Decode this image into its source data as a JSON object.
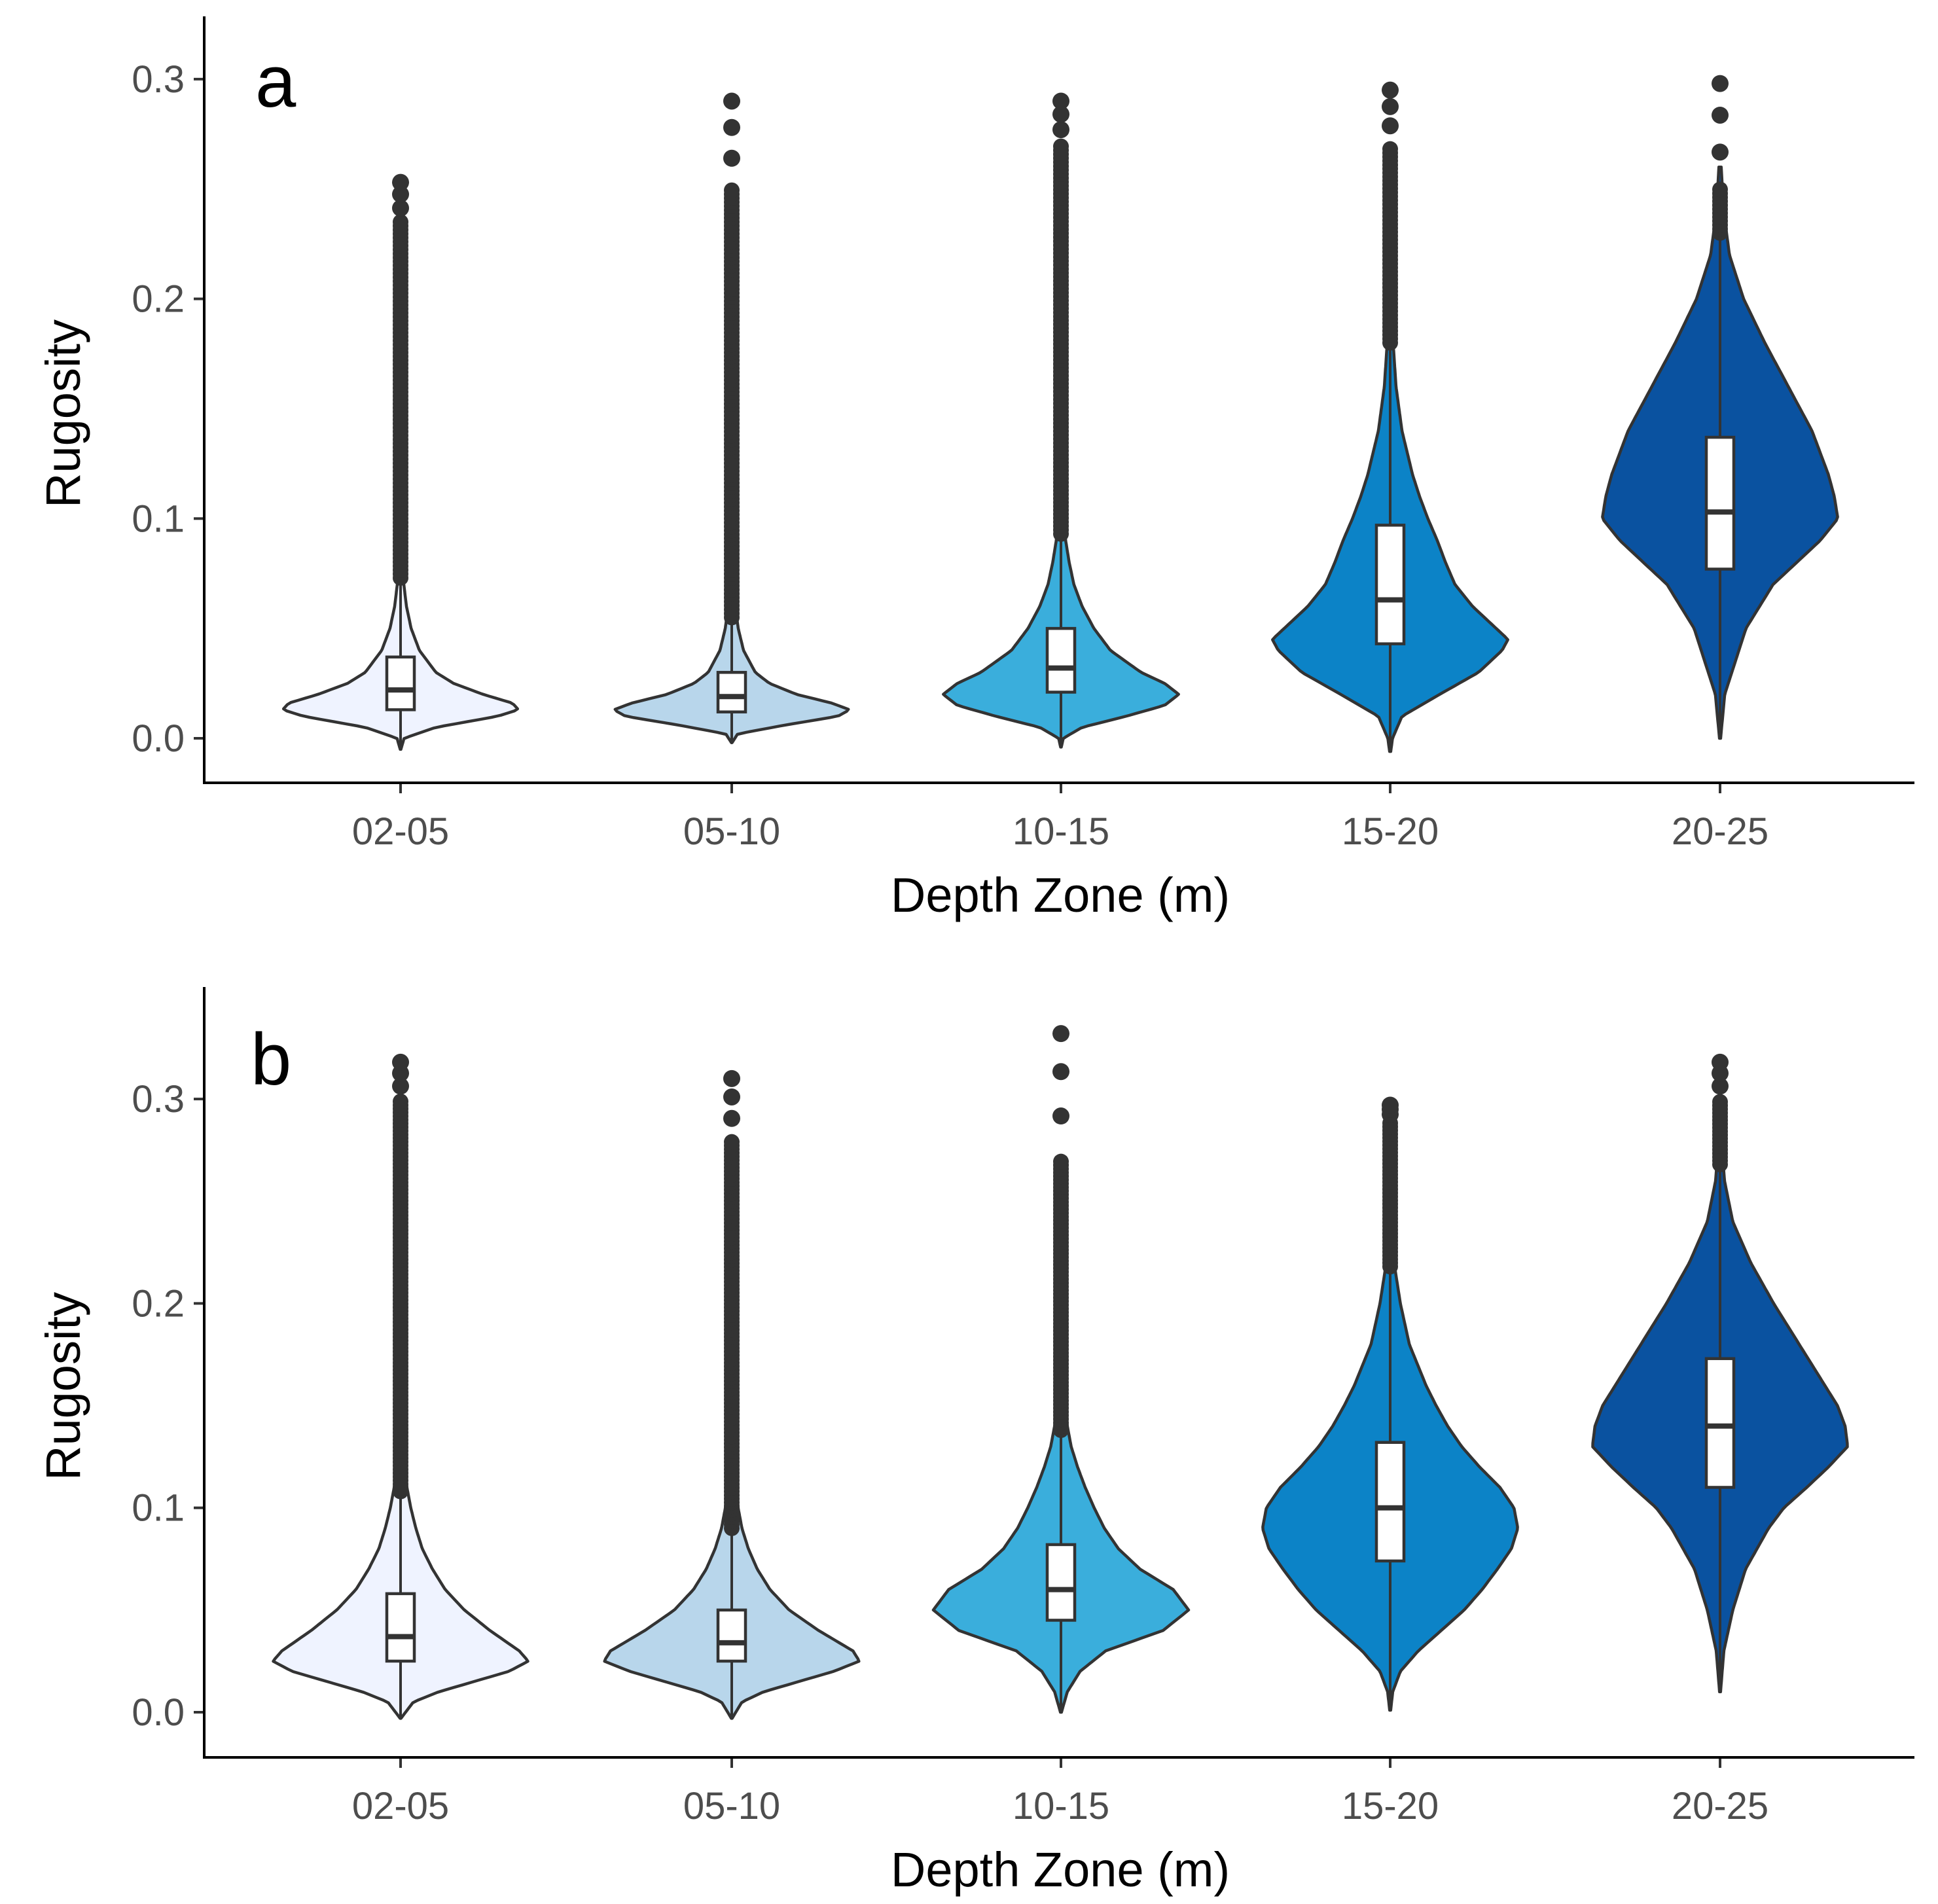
{
  "chart_data": [
    {
      "type": "violin",
      "panel_label": "a",
      "xlabel": "Depth Zone (m)",
      "ylabel": "Rugosity",
      "ylim": [
        -0.02,
        0.325
      ],
      "yticks": [
        0.0,
        0.1,
        0.2,
        0.3
      ],
      "ytick_labels": [
        "0.0",
        "0.1",
        "0.2",
        "0.3"
      ],
      "grid": false,
      "categories": [
        "02-05",
        "05-10",
        "10-15",
        "15-20",
        "20-25"
      ],
      "series": [
        {
          "category": "02-05",
          "color": "#eff3ff",
          "q1": 0.013,
          "median": 0.022,
          "q3": 0.037,
          "whisker_low": -0.005,
          "whisker_high": 0.073,
          "max": 0.253,
          "outlier_dense_to": 0.235,
          "profile": [
            [
              -0.005,
              0.003
            ],
            [
              0.0,
              0.03
            ],
            [
              0.005,
              0.3
            ],
            [
              0.01,
              0.82
            ],
            [
              0.013,
              1.0
            ],
            [
              0.016,
              0.95
            ],
            [
              0.02,
              0.7
            ],
            [
              0.025,
              0.45
            ],
            [
              0.03,
              0.3
            ],
            [
              0.04,
              0.16
            ],
            [
              0.05,
              0.09
            ],
            [
              0.06,
              0.05
            ],
            [
              0.07,
              0.028
            ],
            [
              0.08,
              0.016
            ],
            [
              0.1,
              0.008
            ],
            [
              0.12,
              0.004
            ],
            [
              0.15,
              0.002
            ]
          ]
        },
        {
          "category": "05-10",
          "color": "#b8d6eb",
          "q1": 0.012,
          "median": 0.019,
          "q3": 0.03,
          "whisker_low": -0.002,
          "whisker_high": 0.055,
          "max": 0.29,
          "outlier_dense_to": 0.25,
          "profile": [
            [
              -0.002,
              0.003
            ],
            [
              0.002,
              0.05
            ],
            [
              0.006,
              0.45
            ],
            [
              0.01,
              0.9
            ],
            [
              0.013,
              1.0
            ],
            [
              0.016,
              0.85
            ],
            [
              0.02,
              0.55
            ],
            [
              0.025,
              0.32
            ],
            [
              0.03,
              0.2
            ],
            [
              0.04,
              0.1
            ],
            [
              0.05,
              0.055
            ],
            [
              0.06,
              0.03
            ],
            [
              0.08,
              0.012
            ],
            [
              0.1,
              0.006
            ],
            [
              0.15,
              0.003
            ]
          ]
        },
        {
          "category": "10-15",
          "color": "#3aaedc",
          "q1": 0.021,
          "median": 0.032,
          "q3": 0.05,
          "whisker_low": -0.004,
          "whisker_high": 0.093,
          "max": 0.29,
          "outlier_dense_to": 0.27,
          "profile": [
            [
              -0.004,
              0.003
            ],
            [
              0.0,
              0.02
            ],
            [
              0.005,
              0.18
            ],
            [
              0.01,
              0.55
            ],
            [
              0.015,
              0.88
            ],
            [
              0.02,
              1.0
            ],
            [
              0.025,
              0.88
            ],
            [
              0.03,
              0.68
            ],
            [
              0.04,
              0.42
            ],
            [
              0.05,
              0.28
            ],
            [
              0.06,
              0.18
            ],
            [
              0.07,
              0.11
            ],
            [
              0.08,
              0.07
            ],
            [
              0.09,
              0.04
            ],
            [
              0.1,
              0.022
            ],
            [
              0.12,
              0.01
            ],
            [
              0.15,
              0.005
            ]
          ]
        },
        {
          "category": "15-20",
          "color": "#0c83c7",
          "q1": 0.043,
          "median": 0.063,
          "q3": 0.097,
          "whisker_low": -0.006,
          "whisker_high": 0.18,
          "max": 0.295,
          "outlier_dense_to": 0.27,
          "profile": [
            [
              -0.006,
              0.005
            ],
            [
              0.0,
              0.02
            ],
            [
              0.01,
              0.1
            ],
            [
              0.02,
              0.42
            ],
            [
              0.03,
              0.75
            ],
            [
              0.04,
              0.95
            ],
            [
              0.045,
              1.0
            ],
            [
              0.05,
              0.9
            ],
            [
              0.06,
              0.7
            ],
            [
              0.07,
              0.55
            ],
            [
              0.08,
              0.47
            ],
            [
              0.09,
              0.4
            ],
            [
              0.1,
              0.32
            ],
            [
              0.11,
              0.25
            ],
            [
              0.12,
              0.19
            ],
            [
              0.14,
              0.1
            ],
            [
              0.16,
              0.05
            ],
            [
              0.18,
              0.025
            ],
            [
              0.2,
              0.012
            ],
            [
              0.22,
              0.006
            ]
          ]
        },
        {
          "category": "20-25",
          "color": "#0a52a0",
          "q1": 0.077,
          "median": 0.103,
          "q3": 0.137,
          "whisker_low": 0.0,
          "whisker_high": 0.23,
          "max": 0.298,
          "outlier_dense_to": 0.25,
          "profile": [
            [
              0.0,
              0.005
            ],
            [
              0.02,
              0.04
            ],
            [
              0.03,
              0.1
            ],
            [
              0.05,
              0.22
            ],
            [
              0.07,
              0.45
            ],
            [
              0.09,
              0.85
            ],
            [
              0.1,
              1.0
            ],
            [
              0.11,
              0.97
            ],
            [
              0.12,
              0.92
            ],
            [
              0.14,
              0.78
            ],
            [
              0.16,
              0.58
            ],
            [
              0.18,
              0.38
            ],
            [
              0.2,
              0.2
            ],
            [
              0.22,
              0.08
            ],
            [
              0.24,
              0.03
            ],
            [
              0.26,
              0.01
            ]
          ]
        }
      ]
    },
    {
      "type": "violin",
      "panel_label": "b",
      "xlabel": "Depth Zone (m)",
      "ylabel": "Rugosity",
      "ylim": [
        -0.02,
        0.355
      ],
      "yticks": [
        0.0,
        0.1,
        0.2,
        0.3
      ],
      "ytick_labels": [
        "0.0",
        "0.1",
        "0.2",
        "0.3"
      ],
      "grid": false,
      "categories": [
        "02-05",
        "05-10",
        "10-15",
        "15-20",
        "20-25"
      ],
      "series": [
        {
          "category": "02-05",
          "color": "#eff3ff",
          "q1": 0.025,
          "median": 0.037,
          "q3": 0.058,
          "whisker_low": -0.003,
          "whisker_high": 0.108,
          "max": 0.318,
          "outlier_dense_to": 0.3,
          "profile": [
            [
              -0.003,
              0.003
            ],
            [
              0.005,
              0.1
            ],
            [
              0.01,
              0.3
            ],
            [
              0.02,
              0.85
            ],
            [
              0.025,
              1.0
            ],
            [
              0.03,
              0.93
            ],
            [
              0.04,
              0.7
            ],
            [
              0.05,
              0.5
            ],
            [
              0.06,
              0.35
            ],
            [
              0.07,
              0.25
            ],
            [
              0.08,
              0.17
            ],
            [
              0.09,
              0.12
            ],
            [
              0.1,
              0.08
            ],
            [
              0.11,
              0.05
            ],
            [
              0.12,
              0.03
            ],
            [
              0.15,
              0.012
            ],
            [
              0.2,
              0.005
            ]
          ]
        },
        {
          "category": "05-10",
          "color": "#b8d6eb",
          "q1": 0.025,
          "median": 0.034,
          "q3": 0.05,
          "whisker_low": -0.003,
          "whisker_high": 0.09,
          "max": 0.31,
          "outlier_dense_to": 0.28,
          "profile": [
            [
              -0.003,
              0.003
            ],
            [
              0.005,
              0.08
            ],
            [
              0.01,
              0.25
            ],
            [
              0.02,
              0.8
            ],
            [
              0.025,
              1.0
            ],
            [
              0.03,
              0.95
            ],
            [
              0.04,
              0.68
            ],
            [
              0.05,
              0.45
            ],
            [
              0.06,
              0.3
            ],
            [
              0.07,
              0.2
            ],
            [
              0.08,
              0.13
            ],
            [
              0.09,
              0.08
            ],
            [
              0.1,
              0.05
            ],
            [
              0.12,
              0.025
            ],
            [
              0.15,
              0.01
            ],
            [
              0.2,
              0.004
            ]
          ]
        },
        {
          "category": "10-15",
          "color": "#3aaedc",
          "q1": 0.045,
          "median": 0.06,
          "q3": 0.082,
          "whisker_low": 0.0,
          "whisker_high": 0.138,
          "max": 0.332,
          "outlier_dense_to": 0.27,
          "profile": [
            [
              0.0,
              0.004
            ],
            [
              0.01,
              0.05
            ],
            [
              0.02,
              0.15
            ],
            [
              0.03,
              0.35
            ],
            [
              0.04,
              0.8
            ],
            [
              0.05,
              1.0
            ],
            [
              0.06,
              0.88
            ],
            [
              0.07,
              0.62
            ],
            [
              0.08,
              0.45
            ],
            [
              0.09,
              0.34
            ],
            [
              0.1,
              0.26
            ],
            [
              0.11,
              0.19
            ],
            [
              0.12,
              0.13
            ],
            [
              0.13,
              0.08
            ],
            [
              0.14,
              0.05
            ],
            [
              0.16,
              0.02
            ],
            [
              0.2,
              0.006
            ]
          ]
        },
        {
          "category": "15-20",
          "color": "#0c83c7",
          "q1": 0.074,
          "median": 0.1,
          "q3": 0.132,
          "whisker_low": 0.001,
          "whisker_high": 0.218,
          "max": 0.297,
          "outlier_dense_to": 0.29,
          "profile": [
            [
              0.001,
              0.004
            ],
            [
              0.01,
              0.02
            ],
            [
              0.02,
              0.08
            ],
            [
              0.03,
              0.22
            ],
            [
              0.04,
              0.4
            ],
            [
              0.05,
              0.58
            ],
            [
              0.06,
              0.72
            ],
            [
              0.07,
              0.84
            ],
            [
              0.08,
              0.95
            ],
            [
              0.09,
              1.0
            ],
            [
              0.1,
              0.97
            ],
            [
              0.11,
              0.86
            ],
            [
              0.12,
              0.7
            ],
            [
              0.13,
              0.56
            ],
            [
              0.14,
              0.45
            ],
            [
              0.15,
              0.36
            ],
            [
              0.16,
              0.28
            ],
            [
              0.18,
              0.15
            ],
            [
              0.2,
              0.08
            ],
            [
              0.22,
              0.03
            ],
            [
              0.24,
              0.012
            ]
          ]
        },
        {
          "category": "20-25",
          "color": "#0a52a0",
          "q1": 0.11,
          "median": 0.14,
          "q3": 0.173,
          "whisker_low": 0.01,
          "whisker_high": 0.268,
          "max": 0.318,
          "outlier_dense_to": 0.3,
          "profile": [
            [
              0.01,
              0.004
            ],
            [
              0.03,
              0.03
            ],
            [
              0.05,
              0.1
            ],
            [
              0.07,
              0.2
            ],
            [
              0.09,
              0.38
            ],
            [
              0.1,
              0.5
            ],
            [
              0.11,
              0.68
            ],
            [
              0.12,
              0.85
            ],
            [
              0.13,
              1.0
            ],
            [
              0.14,
              0.98
            ],
            [
              0.15,
              0.92
            ],
            [
              0.16,
              0.82
            ],
            [
              0.17,
              0.72
            ],
            [
              0.18,
              0.62
            ],
            [
              0.19,
              0.52
            ],
            [
              0.2,
              0.42
            ],
            [
              0.22,
              0.24
            ],
            [
              0.24,
              0.1
            ],
            [
              0.26,
              0.035
            ],
            [
              0.28,
              0.012
            ]
          ]
        }
      ]
    }
  ]
}
